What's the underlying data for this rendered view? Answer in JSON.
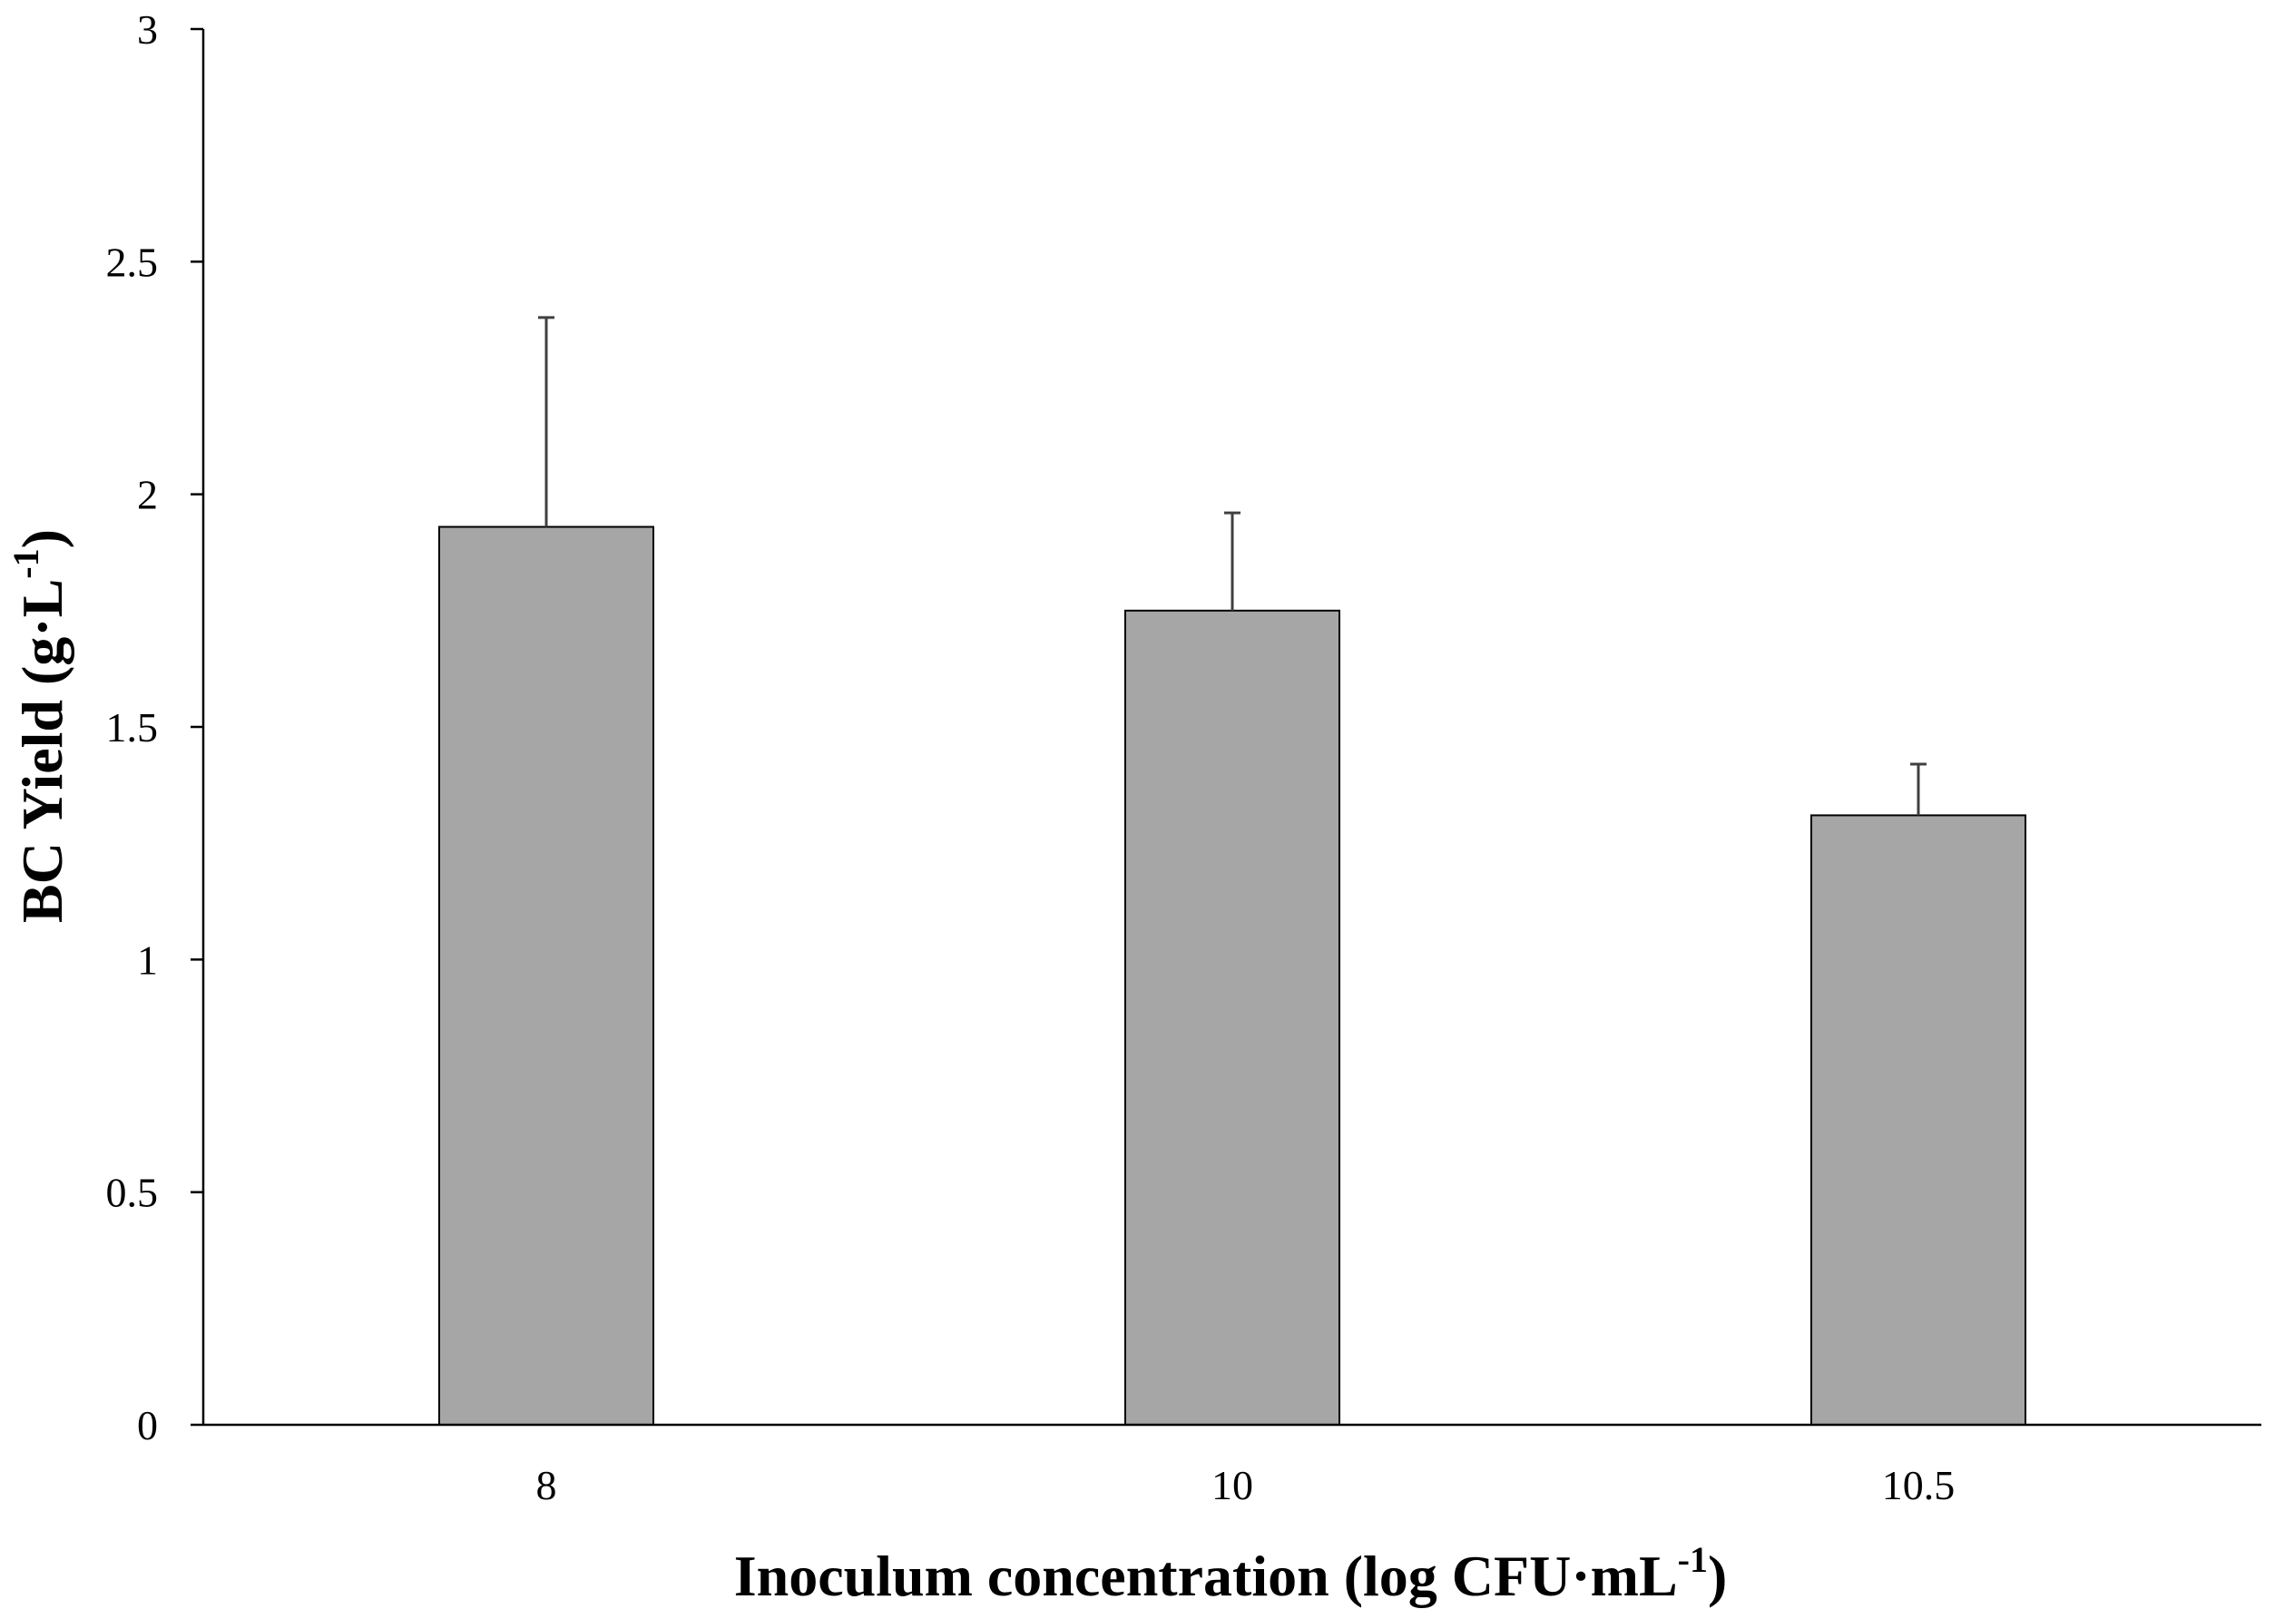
{
  "chart_data": {
    "type": "bar",
    "title": "",
    "xlabel": "Inoculum concentration (log CFU·mL",
    "xlabel_superscript": "-1",
    "xlabel_suffix": ")",
    "ylabel": "BC Yield (g·L",
    "ylabel_superscript": "-1",
    "ylabel_suffix": ")",
    "categories": [
      "8",
      "10",
      "10.5"
    ],
    "values": [
      1.93,
      1.75,
      1.31
    ],
    "errors": [
      0.45,
      0.21,
      0.11
    ],
    "ylim": [
      0,
      3
    ],
    "yticks": [
      0,
      0.5,
      1,
      1.5,
      2,
      2.5,
      3
    ],
    "ytick_labels": [
      "0",
      "0.5",
      "1",
      "1.5",
      "2",
      "2.5",
      "3"
    ],
    "grid": false,
    "legend": "none",
    "bar_color": "#a6a6a6",
    "bar_edge_color": "#000000",
    "error_bar_color": "#404040"
  }
}
